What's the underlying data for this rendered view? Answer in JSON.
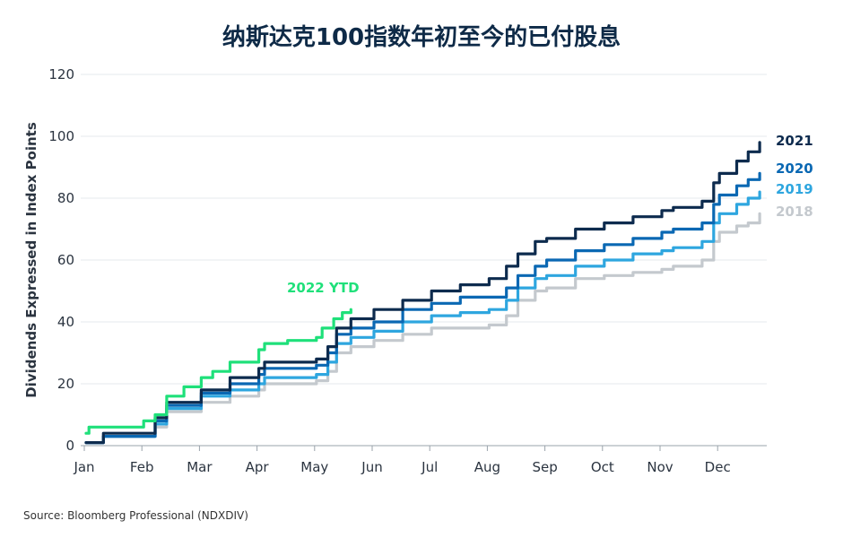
{
  "chart_data": {
    "type": "line",
    "title": "纳斯达克100指数年初至今的已付股息",
    "ylabel": "Dividends Expressed in Index Points",
    "xlabel": "",
    "x_ticks": [
      "Jan",
      "Feb",
      "Mar",
      "Apr",
      "May",
      "Jun",
      "Jul",
      "Aug",
      "Sep",
      "Oct",
      "Nov",
      "Dec"
    ],
    "y_ticks": [
      0,
      20,
      40,
      60,
      80,
      100,
      120
    ],
    "ylim": [
      0,
      120
    ],
    "grid": true,
    "source": "Source: Bloomberg Professional (NDXDIV)",
    "series": [
      {
        "name": "2018",
        "color": "#c4c9ce",
        "points": [
          [
            0,
            1
          ],
          [
            0.3,
            3
          ],
          [
            1,
            3
          ],
          [
            1.2,
            6
          ],
          [
            1.4,
            11
          ],
          [
            2,
            14
          ],
          [
            2.5,
            16
          ],
          [
            3,
            18
          ],
          [
            3.1,
            20
          ],
          [
            4,
            21
          ],
          [
            4.2,
            24
          ],
          [
            4.35,
            30
          ],
          [
            4.6,
            32
          ],
          [
            5,
            34
          ],
          [
            5.5,
            36
          ],
          [
            6,
            38
          ],
          [
            6.5,
            38
          ],
          [
            7,
            39
          ],
          [
            7.3,
            42
          ],
          [
            7.5,
            47
          ],
          [
            7.8,
            50
          ],
          [
            8,
            51
          ],
          [
            8.5,
            54
          ],
          [
            9,
            55
          ],
          [
            9.5,
            56
          ],
          [
            10,
            57
          ],
          [
            10.2,
            58
          ],
          [
            10.5,
            58
          ],
          [
            10.7,
            60
          ],
          [
            10.9,
            66
          ],
          [
            11,
            69
          ],
          [
            11.3,
            71
          ],
          [
            11.5,
            72
          ],
          [
            11.7,
            75
          ]
        ]
      },
      {
        "name": "2019",
        "color": "#2ea6df",
        "points": [
          [
            0,
            1
          ],
          [
            0.3,
            3
          ],
          [
            1,
            3
          ],
          [
            1.2,
            7
          ],
          [
            1.4,
            12
          ],
          [
            2,
            16
          ],
          [
            2.5,
            18
          ],
          [
            3,
            20
          ],
          [
            3.1,
            22
          ],
          [
            4,
            23
          ],
          [
            4.2,
            27
          ],
          [
            4.35,
            33
          ],
          [
            4.6,
            35
          ],
          [
            5,
            37
          ],
          [
            5.5,
            40
          ],
          [
            6,
            42
          ],
          [
            6.5,
            43
          ],
          [
            7,
            44
          ],
          [
            7.3,
            47
          ],
          [
            7.5,
            51
          ],
          [
            7.8,
            54
          ],
          [
            8,
            55
          ],
          [
            8.5,
            58
          ],
          [
            9,
            60
          ],
          [
            9.5,
            62
          ],
          [
            10,
            63
          ],
          [
            10.2,
            64
          ],
          [
            10.5,
            64
          ],
          [
            10.7,
            66
          ],
          [
            10.9,
            72
          ],
          [
            11,
            75
          ],
          [
            11.3,
            78
          ],
          [
            11.5,
            80
          ],
          [
            11.7,
            82
          ]
        ]
      },
      {
        "name": "2020",
        "color": "#0a68b3",
        "points": [
          [
            0,
            1
          ],
          [
            0.3,
            3
          ],
          [
            1,
            3
          ],
          [
            1.2,
            8
          ],
          [
            1.4,
            13
          ],
          [
            2,
            17
          ],
          [
            2.5,
            20
          ],
          [
            3,
            23
          ],
          [
            3.1,
            25
          ],
          [
            4,
            26
          ],
          [
            4.2,
            30
          ],
          [
            4.35,
            36
          ],
          [
            4.6,
            38
          ],
          [
            5,
            40
          ],
          [
            5.5,
            44
          ],
          [
            6,
            46
          ],
          [
            6.5,
            48
          ],
          [
            7,
            48
          ],
          [
            7.3,
            51
          ],
          [
            7.5,
            55
          ],
          [
            7.8,
            58
          ],
          [
            8,
            60
          ],
          [
            8.5,
            63
          ],
          [
            9,
            65
          ],
          [
            9.5,
            67
          ],
          [
            10,
            69
          ],
          [
            10.2,
            70
          ],
          [
            10.5,
            70
          ],
          [
            10.7,
            72
          ],
          [
            10.9,
            78
          ],
          [
            11,
            81
          ],
          [
            11.3,
            84
          ],
          [
            11.5,
            86
          ],
          [
            11.7,
            88
          ]
        ]
      },
      {
        "name": "2021",
        "color": "#0d2b4e",
        "points": [
          [
            0,
            1
          ],
          [
            0.3,
            4
          ],
          [
            1,
            4
          ],
          [
            1.2,
            9
          ],
          [
            1.4,
            14
          ],
          [
            2,
            18
          ],
          [
            2.5,
            22
          ],
          [
            3,
            25
          ],
          [
            3.1,
            27
          ],
          [
            4,
            28
          ],
          [
            4.2,
            32
          ],
          [
            4.35,
            38
          ],
          [
            4.6,
            41
          ],
          [
            5,
            44
          ],
          [
            5.5,
            47
          ],
          [
            6,
            50
          ],
          [
            6.5,
            52
          ],
          [
            7,
            54
          ],
          [
            7.3,
            58
          ],
          [
            7.5,
            62
          ],
          [
            7.8,
            66
          ],
          [
            8,
            67
          ],
          [
            8.5,
            70
          ],
          [
            9,
            72
          ],
          [
            9.5,
            74
          ],
          [
            10,
            76
          ],
          [
            10.2,
            77
          ],
          [
            10.5,
            77
          ],
          [
            10.7,
            79
          ],
          [
            10.9,
            85
          ],
          [
            11,
            88
          ],
          [
            11.3,
            92
          ],
          [
            11.5,
            95
          ],
          [
            11.7,
            98
          ]
        ]
      },
      {
        "name": "2022 YTD",
        "color": "#1fe07a",
        "points": [
          [
            0,
            4
          ],
          [
            0.05,
            6
          ],
          [
            0.8,
            6
          ],
          [
            1,
            8
          ],
          [
            1.2,
            10
          ],
          [
            1.4,
            16
          ],
          [
            1.7,
            19
          ],
          [
            2,
            22
          ],
          [
            2.2,
            24
          ],
          [
            2.5,
            27
          ],
          [
            3,
            31
          ],
          [
            3.1,
            33
          ],
          [
            3.5,
            34
          ],
          [
            4,
            35
          ],
          [
            4.1,
            38
          ],
          [
            4.3,
            41
          ],
          [
            4.45,
            43
          ],
          [
            4.6,
            44
          ]
        ]
      }
    ]
  }
}
